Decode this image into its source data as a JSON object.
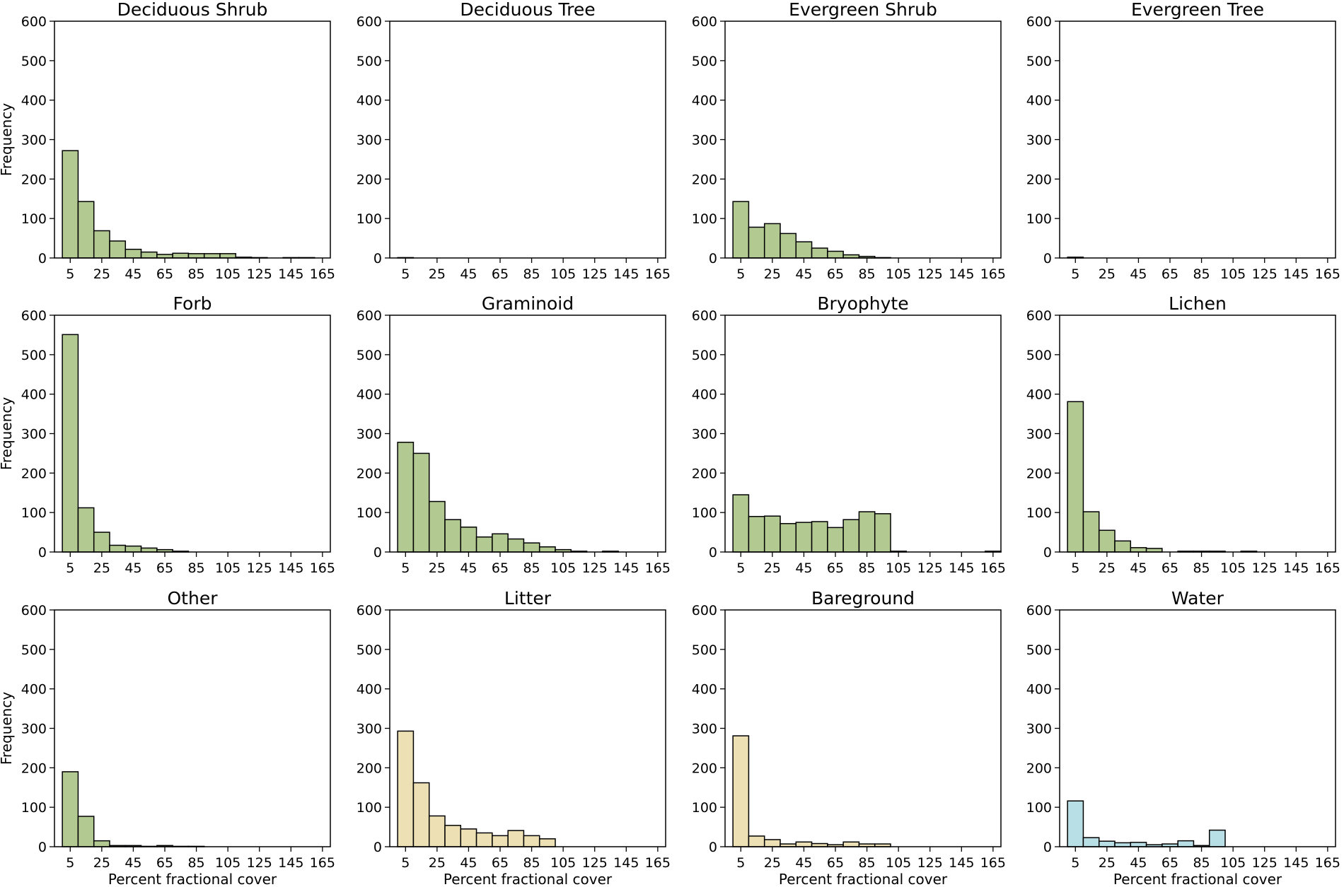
{
  "colors": {
    "green": "#b2c991",
    "tan": "#ede0b4",
    "blue": "#b8dfe6",
    "edge": "#000000"
  },
  "axes_common": {
    "ylabel": "Frequency",
    "xlabel": "Percent fractional cover",
    "ylim": [
      0,
      600
    ],
    "yticks": [
      0,
      100,
      200,
      300,
      400,
      500,
      600
    ],
    "xticks": [
      5,
      25,
      45,
      65,
      85,
      105,
      125,
      145,
      165
    ],
    "xlim": [
      -5,
      170
    ],
    "bin_width": 10,
    "bin_starts": [
      0,
      10,
      20,
      30,
      40,
      50,
      60,
      70,
      80,
      90,
      100,
      110,
      120,
      130,
      140,
      150,
      160
    ]
  },
  "chart_data": [
    {
      "type": "bar",
      "title": "Deciduous Shrub",
      "color": "green",
      "values": [
        272,
        143,
        69,
        43,
        22,
        15,
        9,
        12,
        11,
        11,
        11,
        2,
        1,
        0,
        1,
        1,
        0
      ]
    },
    {
      "type": "bar",
      "title": "Deciduous Tree",
      "color": "green",
      "values": [
        1,
        0,
        0,
        0,
        0,
        0,
        0,
        0,
        0,
        0,
        0,
        0,
        0,
        0,
        0,
        0,
        0
      ]
    },
    {
      "type": "bar",
      "title": "Evergreen Shrub",
      "color": "green",
      "values": [
        143,
        78,
        87,
        62,
        41,
        25,
        17,
        8,
        4,
        1,
        0,
        0,
        0,
        0,
        0,
        0,
        0
      ]
    },
    {
      "type": "bar",
      "title": "Evergreen Tree",
      "color": "green",
      "values": [
        2,
        0,
        0,
        0,
        0,
        0,
        0,
        0,
        0,
        0,
        0,
        0,
        0,
        0,
        0,
        0,
        0
      ]
    },
    {
      "type": "bar",
      "title": "Forb",
      "color": "green",
      "values": [
        551,
        112,
        50,
        17,
        15,
        10,
        6,
        2,
        0,
        0,
        0,
        0,
        0,
        0,
        0,
        0,
        0
      ]
    },
    {
      "type": "bar",
      "title": "Graminoid",
      "color": "green",
      "values": [
        278,
        250,
        128,
        82,
        63,
        38,
        46,
        33,
        23,
        13,
        6,
        2,
        0,
        2,
        0,
        0,
        0
      ]
    },
    {
      "type": "bar",
      "title": "Bryophyte",
      "color": "green",
      "values": [
        145,
        90,
        91,
        72,
        75,
        77,
        62,
        82,
        102,
        97,
        2,
        0,
        0,
        0,
        0,
        0,
        2
      ]
    },
    {
      "type": "bar",
      "title": "Lichen",
      "color": "green",
      "values": [
        381,
        102,
        55,
        28,
        11,
        9,
        0,
        2,
        2,
        2,
        0,
        2,
        0,
        0,
        0,
        0,
        0
      ]
    },
    {
      "type": "bar",
      "title": "Other",
      "color": "green",
      "values": [
        190,
        77,
        15,
        3,
        3,
        1,
        3,
        1,
        1,
        0,
        0,
        0,
        0,
        0,
        0,
        0,
        0
      ]
    },
    {
      "type": "bar",
      "title": "Litter",
      "color": "tan",
      "values": [
        293,
        162,
        78,
        54,
        45,
        35,
        28,
        41,
        28,
        20,
        0,
        0,
        0,
        0,
        0,
        0,
        0
      ]
    },
    {
      "type": "bar",
      "title": "Bareground",
      "color": "tan",
      "values": [
        281,
        27,
        18,
        7,
        12,
        8,
        5,
        12,
        7,
        7,
        0,
        0,
        0,
        0,
        0,
        0,
        0
      ]
    },
    {
      "type": "bar",
      "title": "Water",
      "color": "blue",
      "values": [
        116,
        23,
        14,
        10,
        11,
        5,
        7,
        15,
        3,
        42,
        0,
        0,
        0,
        0,
        0,
        0,
        0
      ]
    }
  ]
}
